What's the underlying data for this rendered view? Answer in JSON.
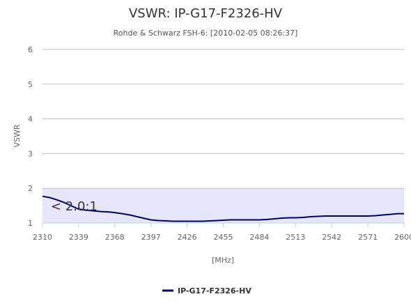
{
  "chart_data": {
    "type": "line",
    "title": "VSWR: IP-G17-F2326-HV",
    "subtitle": "Rohde & Schwarz FSH-6: [2010-02-05 08:26:37]",
    "xlabel": "[MHz]",
    "ylabel": "VSWR",
    "xlim": [
      2310,
      2600
    ],
    "ylim": [
      1,
      6
    ],
    "x_ticks": [
      "2310",
      "2339",
      "2368",
      "2397",
      "2426",
      "2455",
      "2484",
      "2513",
      "2542",
      "2571",
      "2600"
    ],
    "y_ticks": [
      "1",
      "2",
      "3",
      "4",
      "5",
      "6"
    ],
    "grid": true,
    "legend": "bottom-center",
    "band": {
      "from": 1,
      "to": 2,
      "label": "< 2.0:1",
      "color": "#e6e6fa"
    },
    "series": [
      {
        "name": "IP-G17-F2326-HV",
        "color": "#000066",
        "x": [
          2310,
          2316,
          2322,
          2328,
          2334,
          2339,
          2345,
          2351,
          2357,
          2363,
          2368,
          2374,
          2380,
          2386,
          2392,
          2397,
          2403,
          2409,
          2415,
          2421,
          2426,
          2432,
          2438,
          2444,
          2450,
          2455,
          2461,
          2467,
          2473,
          2479,
          2484,
          2490,
          2496,
          2502,
          2508,
          2513,
          2519,
          2525,
          2531,
          2537,
          2542,
          2548,
          2554,
          2560,
          2566,
          2571,
          2577,
          2583,
          2589,
          2595,
          2600
        ],
        "values": [
          1.77,
          1.73,
          1.66,
          1.58,
          1.48,
          1.4,
          1.37,
          1.35,
          1.33,
          1.32,
          1.3,
          1.27,
          1.23,
          1.18,
          1.13,
          1.09,
          1.07,
          1.06,
          1.05,
          1.05,
          1.05,
          1.05,
          1.05,
          1.06,
          1.07,
          1.08,
          1.09,
          1.09,
          1.09,
          1.09,
          1.09,
          1.1,
          1.12,
          1.14,
          1.15,
          1.15,
          1.16,
          1.18,
          1.19,
          1.2,
          1.2,
          1.2,
          1.2,
          1.2,
          1.2,
          1.2,
          1.21,
          1.23,
          1.25,
          1.27,
          1.27
        ]
      }
    ]
  }
}
